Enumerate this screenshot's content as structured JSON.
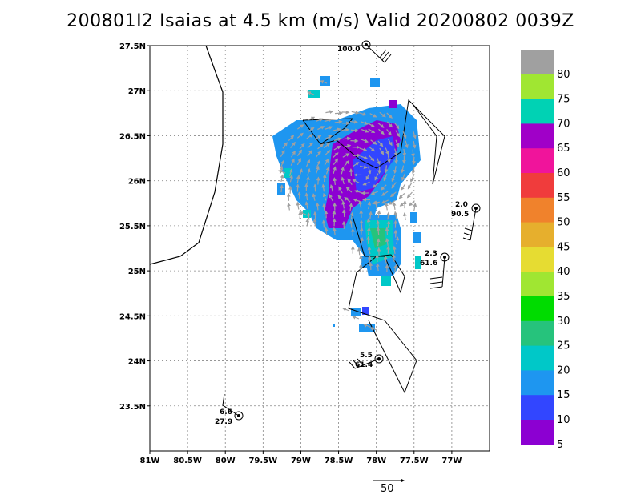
{
  "title": "200801I2 Isaias at 4.5 km (m/s) Valid 20200802 0039Z",
  "map": {
    "lon_min": -81.0,
    "lon_max": -76.5,
    "lat_min": 23.0,
    "lat_max": 27.5,
    "x_ticks": [
      "81W",
      "80.5W",
      "80W",
      "79.5W",
      "79W",
      "78.5W",
      "78W",
      "77.5W",
      "77W"
    ],
    "y_ticks": [
      "27.5N",
      "27N",
      "26.5N",
      "26N",
      "25.5N",
      "25N",
      "24.5N",
      "24N",
      "23.5N"
    ],
    "grid": "dotted"
  },
  "colorbar": {
    "labels": [
      "80",
      "75",
      "70",
      "65",
      "60",
      "55",
      "50",
      "45",
      "40",
      "35",
      "30",
      "25",
      "20",
      "15",
      "10",
      "5"
    ],
    "colors": [
      "#a0a0a0",
      "#a0e632",
      "#00d2b4",
      "#a000c8",
      "#f0149b",
      "#f03c3c",
      "#f0822c",
      "#e6af2d",
      "#e6dc32",
      "#a0e632",
      "#00dc00",
      "#26c37c",
      "#00c8c8",
      "#1e96f0",
      "#3246ff",
      "#8c00d2"
    ]
  },
  "stations": [
    {
      "top": "100.0",
      "bottom": ""
    },
    {
      "top": "2.0",
      "bottom": "90.5"
    },
    {
      "top": "2.3",
      "bottom": "61.6"
    },
    {
      "top": "5.5",
      "bottom": "61.4"
    },
    {
      "top": "6.6",
      "bottom": "27.9"
    }
  ],
  "reference_vector": {
    "label": "50"
  }
}
